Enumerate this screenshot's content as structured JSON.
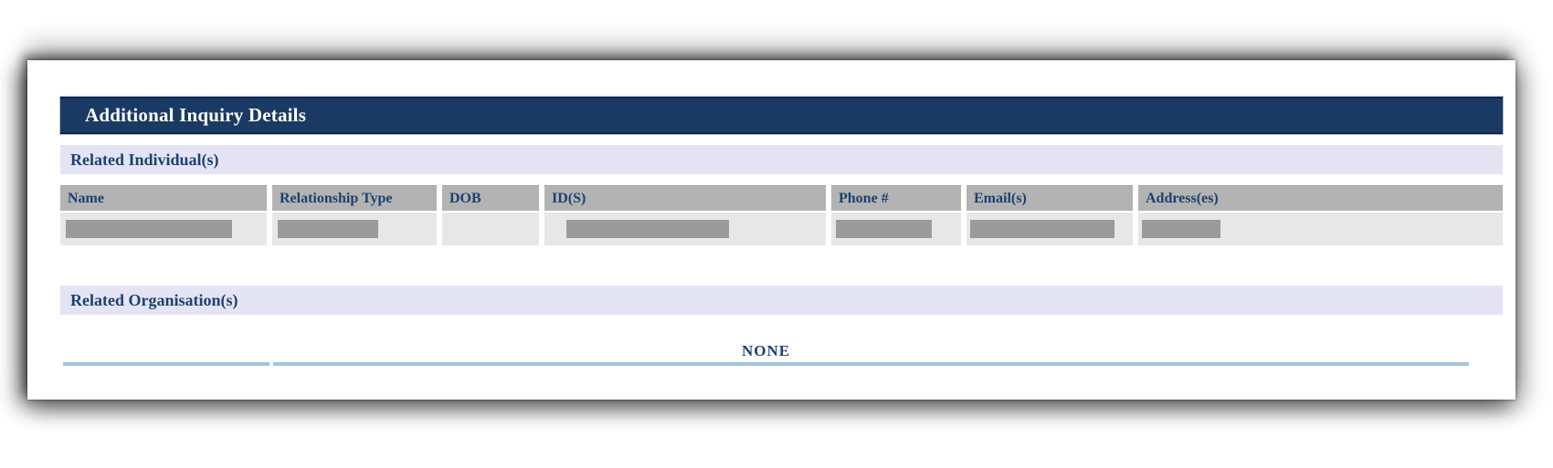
{
  "document": {
    "title": "Additional Inquiry Details",
    "related_individuals": {
      "heading": "Related Individual(s)",
      "columns": [
        "Name",
        "Relationship Type",
        "DOB",
        "ID(S)",
        "Phone #",
        "Email(s)",
        "Address(es)"
      ],
      "rows": [
        {
          "redacted": true,
          "bars": {
            "name": 182,
            "relationship": 110,
            "dob": 0,
            "ids": 178,
            "phone": 105,
            "email": 158,
            "address": 86
          }
        }
      ]
    },
    "related_organisations": {
      "heading": "Related Organisation(s)",
      "value": "NONE"
    }
  },
  "colors": {
    "title_bar": "#1a3a64",
    "title_text": "#ffffff",
    "heading_text": "#1c4170",
    "lavender": "#e4e4f5",
    "table_header": "#b3b3b3",
    "table_row": "#e7e7e7",
    "redaction": "#9b9b9b",
    "underline": "#a5c4dd"
  }
}
